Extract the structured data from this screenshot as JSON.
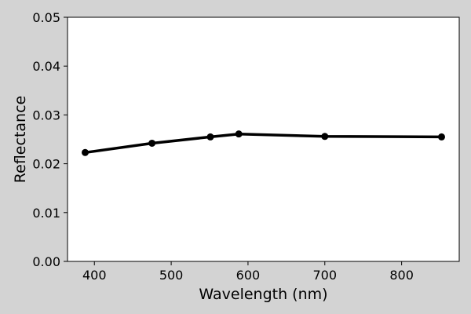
{
  "chart_data": {
    "type": "line",
    "title": "",
    "xlabel": "Wavelength (nm)",
    "ylabel": "Reflectance",
    "xlim": [
      365,
      875
    ],
    "ylim": [
      0.0,
      0.05
    ],
    "x_ticks": [
      400,
      500,
      600,
      700,
      800
    ],
    "x_tick_labels": [
      "400",
      "500",
      "600",
      "700",
      "800"
    ],
    "y_ticks": [
      0.0,
      0.01,
      0.02,
      0.03,
      0.04,
      0.05
    ],
    "y_tick_labels": [
      "0.00",
      "0.01",
      "0.02",
      "0.03",
      "0.04",
      "0.05"
    ],
    "grid": false,
    "series": [
      {
        "color": "#000000",
        "marker": "circle",
        "x": [
          388,
          475,
          551,
          588,
          700,
          852
        ],
        "y": [
          0.0223,
          0.0242,
          0.0255,
          0.0261,
          0.0256,
          0.0255
        ]
      }
    ]
  },
  "colors": {
    "figure_background": "#d3d3d3",
    "plot_background": "#ffffff",
    "line": "#000000"
  }
}
